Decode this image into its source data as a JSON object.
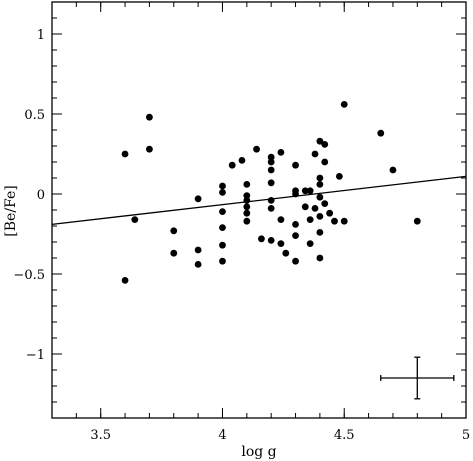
{
  "chart_data": {
    "type": "scatter",
    "title": "",
    "xlabel": "log g",
    "ylabel": "[Be/Fe]",
    "xlim": [
      3.3,
      5.0
    ],
    "ylim": [
      -1.4,
      1.2
    ],
    "x_ticks": [
      3.5,
      4.0,
      4.5,
      5.0
    ],
    "x_tick_labels": [
      "3.5",
      "4",
      "4.5",
      "5"
    ],
    "y_ticks": [
      -1,
      -0.5,
      0,
      0.5,
      1
    ],
    "y_tick_labels": [
      "−1",
      "−0.5",
      "0",
      "0.5",
      "1"
    ],
    "x_minor_step": 0.1,
    "y_minor_step": 0.1,
    "grid": false,
    "points": [
      {
        "x": 3.6,
        "y": 0.25
      },
      {
        "x": 3.6,
        "y": -0.54
      },
      {
        "x": 3.64,
        "y": -0.16
      },
      {
        "x": 3.7,
        "y": 0.48
      },
      {
        "x": 3.7,
        "y": 0.28
      },
      {
        "x": 3.8,
        "y": -0.23
      },
      {
        "x": 3.8,
        "y": -0.37
      },
      {
        "x": 3.9,
        "y": -0.03
      },
      {
        "x": 3.9,
        "y": -0.35
      },
      {
        "x": 3.9,
        "y": -0.44
      },
      {
        "x": 4.0,
        "y": 0.05
      },
      {
        "x": 4.0,
        "y": 0.01
      },
      {
        "x": 4.0,
        "y": -0.11
      },
      {
        "x": 4.0,
        "y": -0.21
      },
      {
        "x": 4.0,
        "y": -0.32
      },
      {
        "x": 4.0,
        "y": -0.42
      },
      {
        "x": 4.04,
        "y": 0.18
      },
      {
        "x": 4.08,
        "y": 0.21
      },
      {
        "x": 4.1,
        "y": 0.06
      },
      {
        "x": 4.1,
        "y": -0.01
      },
      {
        "x": 4.1,
        "y": -0.04
      },
      {
        "x": 4.1,
        "y": -0.08
      },
      {
        "x": 4.1,
        "y": -0.12
      },
      {
        "x": 4.1,
        "y": -0.17
      },
      {
        "x": 4.14,
        "y": 0.28
      },
      {
        "x": 4.16,
        "y": -0.28
      },
      {
        "x": 4.2,
        "y": 0.23
      },
      {
        "x": 4.2,
        "y": 0.2
      },
      {
        "x": 4.2,
        "y": 0.15
      },
      {
        "x": 4.2,
        "y": 0.07
      },
      {
        "x": 4.2,
        "y": -0.04
      },
      {
        "x": 4.2,
        "y": -0.09
      },
      {
        "x": 4.2,
        "y": -0.29
      },
      {
        "x": 4.24,
        "y": 0.26
      },
      {
        "x": 4.24,
        "y": -0.16
      },
      {
        "x": 4.24,
        "y": -0.31
      },
      {
        "x": 4.26,
        "y": -0.37
      },
      {
        "x": 4.3,
        "y": 0.18
      },
      {
        "x": 4.3,
        "y": 0.02
      },
      {
        "x": 4.3,
        "y": 0.0
      },
      {
        "x": 4.3,
        "y": -0.19
      },
      {
        "x": 4.3,
        "y": -0.26
      },
      {
        "x": 4.3,
        "y": -0.42
      },
      {
        "x": 4.34,
        "y": 0.02
      },
      {
        "x": 4.34,
        "y": -0.08
      },
      {
        "x": 4.36,
        "y": 0.02
      },
      {
        "x": 4.36,
        "y": -0.16
      },
      {
        "x": 4.36,
        "y": -0.31
      },
      {
        "x": 4.38,
        "y": 0.25
      },
      {
        "x": 4.38,
        "y": -0.09
      },
      {
        "x": 4.4,
        "y": 0.33
      },
      {
        "x": 4.4,
        "y": 0.1
      },
      {
        "x": 4.4,
        "y": 0.06
      },
      {
        "x": 4.4,
        "y": -0.02
      },
      {
        "x": 4.4,
        "y": -0.14
      },
      {
        "x": 4.4,
        "y": -0.24
      },
      {
        "x": 4.4,
        "y": -0.4
      },
      {
        "x": 4.42,
        "y": 0.31
      },
      {
        "x": 4.42,
        "y": 0.2
      },
      {
        "x": 4.42,
        "y": -0.06
      },
      {
        "x": 4.44,
        "y": -0.12
      },
      {
        "x": 4.46,
        "y": -0.17
      },
      {
        "x": 4.48,
        "y": 0.11
      },
      {
        "x": 4.5,
        "y": 0.56
      },
      {
        "x": 4.5,
        "y": -0.17
      },
      {
        "x": 4.65,
        "y": 0.38
      },
      {
        "x": 4.7,
        "y": 0.15
      },
      {
        "x": 4.8,
        "y": -0.17
      }
    ],
    "fit_line": {
      "x": [
        3.3,
        5.0
      ],
      "y": [
        -0.19,
        0.11
      ]
    },
    "error_bar": {
      "x": 4.8,
      "y": -1.15,
      "x_err": 0.15,
      "y_err": 0.13
    }
  }
}
